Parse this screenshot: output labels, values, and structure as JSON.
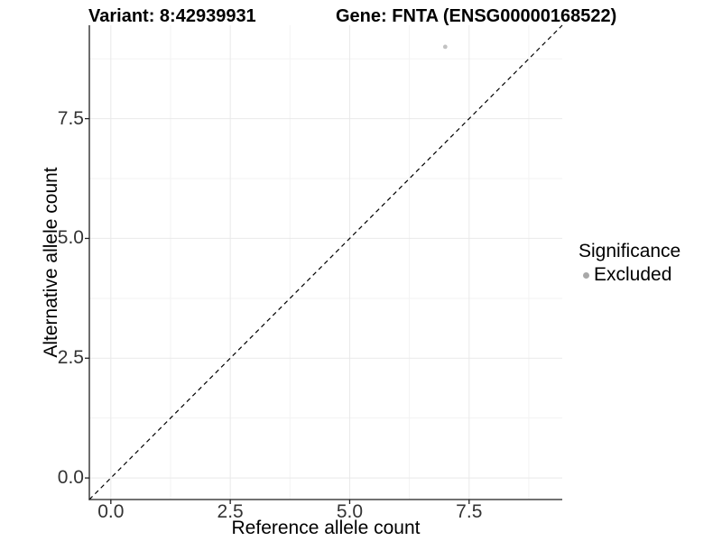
{
  "titles": {
    "left": "Variant: 8:42939931",
    "right": "Gene: FNTA (ENSG00000168522)"
  },
  "chart_data": {
    "type": "scatter",
    "title": "Variant: 8:42939931   Gene: FNTA (ENSG00000168522)",
    "xlabel": "Reference allele count",
    "ylabel": "Alternative allele count",
    "xlim": [
      -0.45,
      9.45
    ],
    "ylim": [
      -0.45,
      9.45
    ],
    "x_tick_values": [
      0,
      2.5,
      5,
      7.5
    ],
    "x_tick_labels": [
      "0.0",
      "2.5",
      "5.0",
      "7.5"
    ],
    "y_tick_values": [
      0,
      2.5,
      5,
      7.5
    ],
    "y_tick_labels": [
      "0.0",
      "2.5",
      "5.0",
      "7.5"
    ],
    "minor_tick_values": [
      1.25,
      3.75,
      6.25,
      8.75
    ],
    "grid": true,
    "legend_position": "right",
    "series": [
      {
        "name": "Excluded",
        "points": [
          {
            "x": 7,
            "y": 9
          }
        ],
        "color": "#c2c2c2"
      }
    ],
    "reference_line": {
      "slope": 1,
      "intercept": 0,
      "style": "dashed",
      "color": "#000000"
    }
  },
  "legend": {
    "title": "Significance",
    "entries": [
      {
        "label": "Excluded",
        "color": "#a8a8a8"
      }
    ]
  },
  "style_colors": {
    "axis_line": "#1f1f1f",
    "tick_text": "#333333",
    "grid_major": "#e9e9e9",
    "grid_minor": "#f3f3f3"
  }
}
